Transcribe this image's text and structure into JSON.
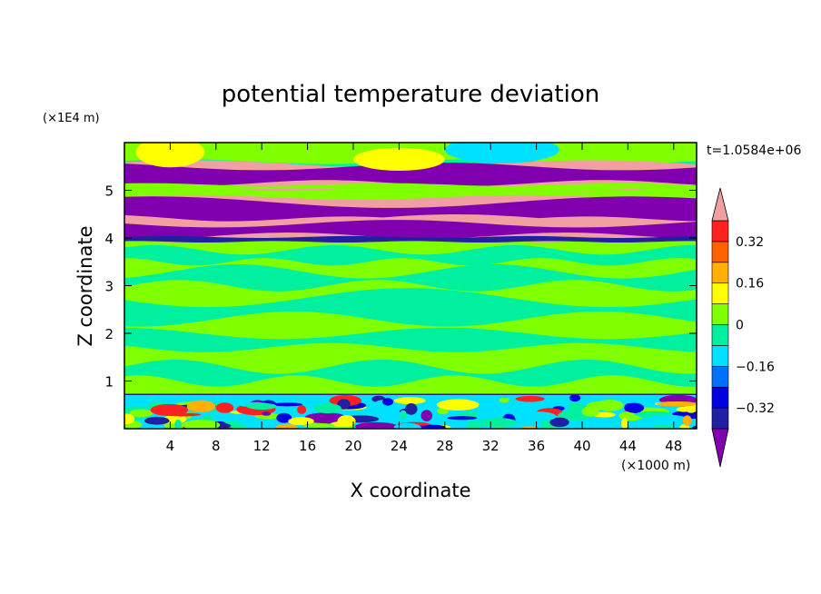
{
  "chart_data": {
    "type": "heatmap",
    "title": "potential temperature deviation",
    "xlabel": "X coordinate",
    "ylabel": "Z coordinate",
    "x_unit": "(×1000 m)",
    "y_unit": "(×1E4 m)",
    "time_label": "t=1.0584e+06",
    "xlim": [
      0,
      50
    ],
    "ylim": [
      0,
      6
    ],
    "x_ticks": [
      "4",
      "8",
      "12",
      "16",
      "20",
      "24",
      "28",
      "32",
      "36",
      "40",
      "44",
      "48"
    ],
    "y_ticks": [
      "1",
      "2",
      "3",
      "4",
      "5"
    ],
    "colorbar": {
      "levels": [
        -0.4,
        -0.32,
        -0.24,
        -0.16,
        -0.08,
        0,
        0.08,
        0.16,
        0.24,
        0.32,
        0.4
      ],
      "tick_labels": [
        "0.32",
        "0.16",
        "0",
        "−0.16",
        "−0.32"
      ],
      "tick_values": [
        0.32,
        0.16,
        0,
        -0.16,
        -0.32
      ],
      "colors": [
        "#8000b0",
        "#2020a0",
        "#0000e0",
        "#0070ff",
        "#00e0ff",
        "#00f0a0",
        "#80ff00",
        "#ffff00",
        "#ffb000",
        "#ff6000",
        "#ff2020",
        "#f0a0a0"
      ],
      "extend": "both"
    },
    "bands": [
      {
        "z0": 0.0,
        "z1": 0.7,
        "value": "mixed"
      },
      {
        "z0": 0.7,
        "z1": 3.9,
        "value": [
          0.0,
          0.08
        ]
      },
      {
        "z0": 3.9,
        "z1": 4.4,
        "value": "alternating"
      },
      {
        "z0": 4.4,
        "z1": 4.8,
        "value": "alternating"
      },
      {
        "z0": 4.8,
        "z1": 5.0,
        "value": [
          0.0,
          0.08
        ]
      },
      {
        "z0": 5.0,
        "z1": 5.6,
        "value": "alternating"
      },
      {
        "z0": 5.6,
        "z1": 6.0,
        "value": [
          0.0,
          0.08
        ]
      }
    ]
  }
}
